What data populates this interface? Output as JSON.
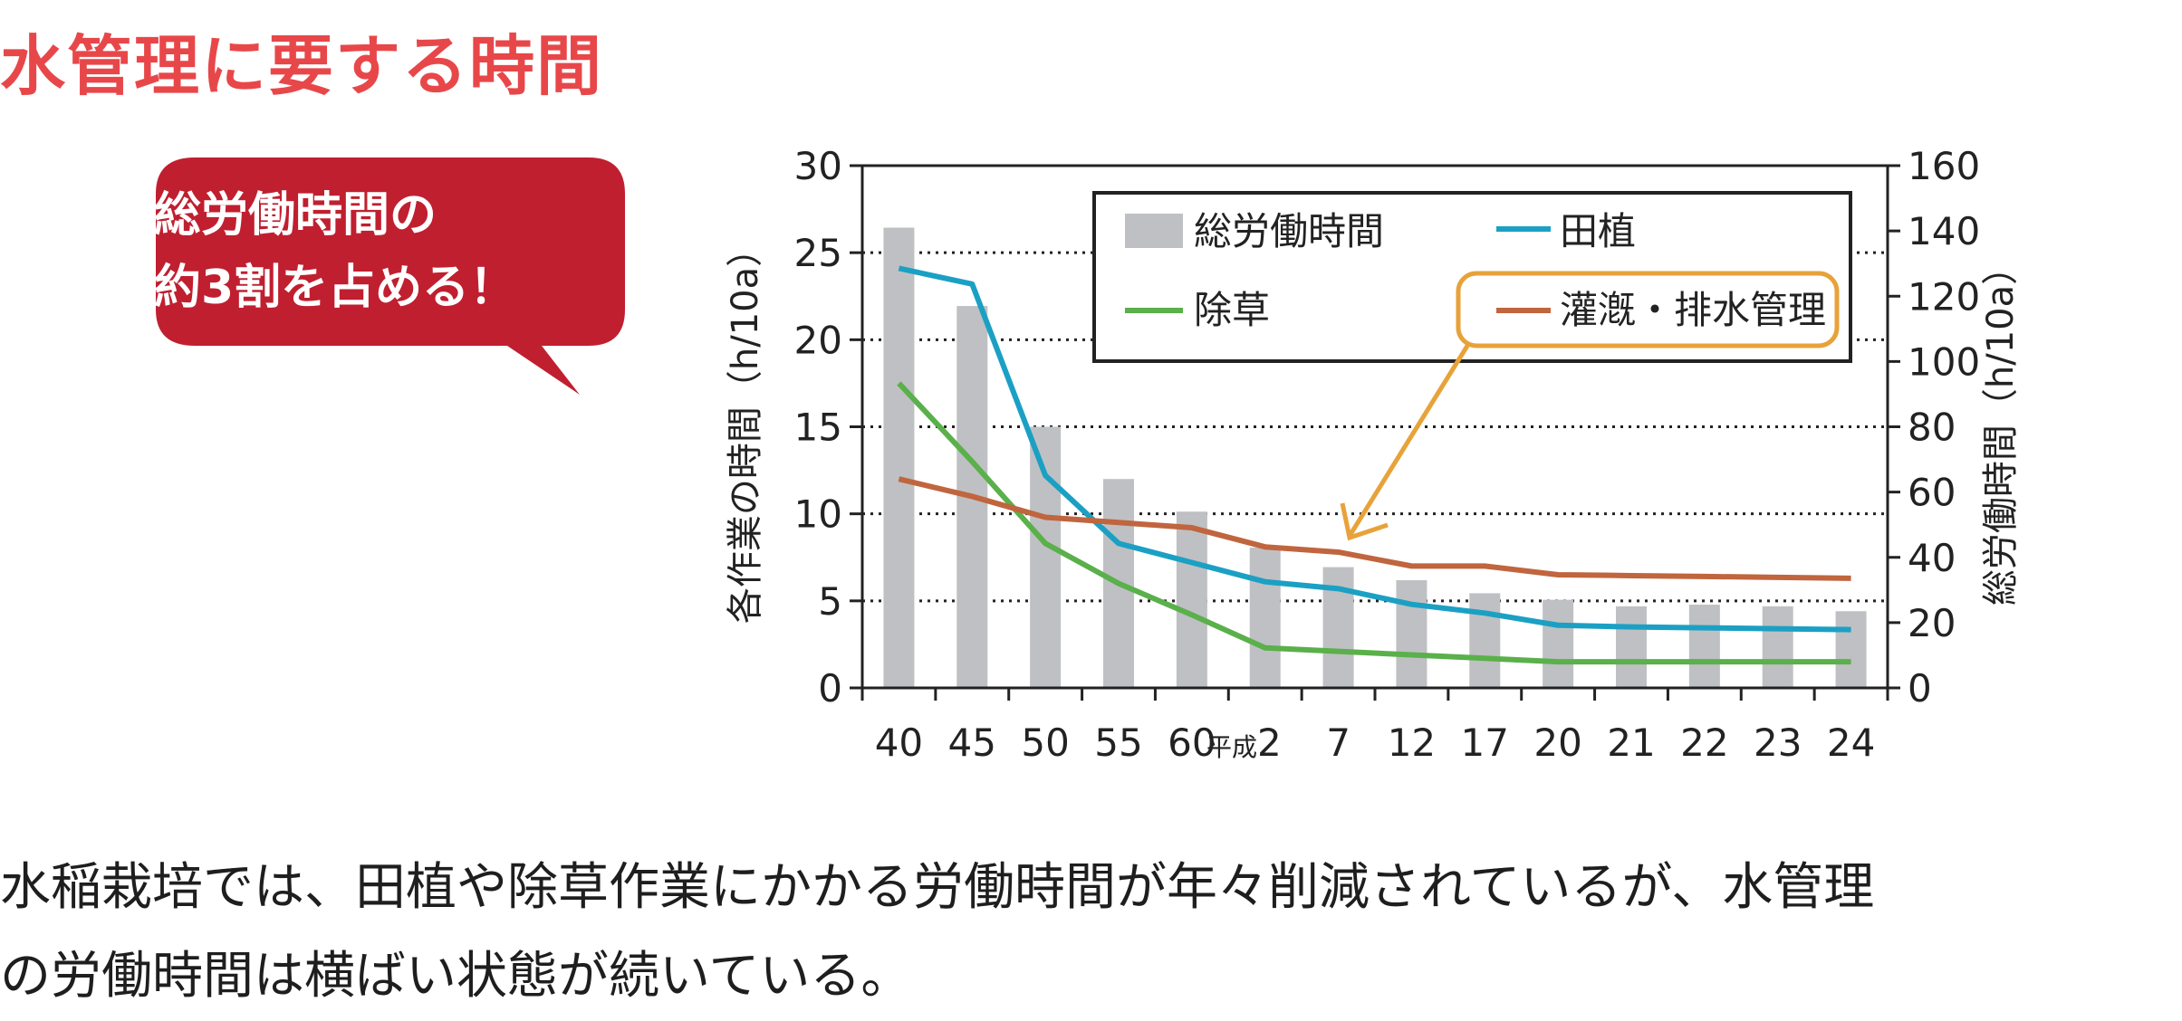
{
  "page_title": "水管理に要する時間",
  "callout": {
    "line1": "総労働時間の",
    "line2": "約3割を占める！"
  },
  "body_text": {
    "line1": "水稲栽培では、田植や除草作業にかかる労働時間が年々削減されているが、水管理",
    "line2": "の労働時間は横ばい状態が続いている。"
  },
  "colors": {
    "title": "#e8474a",
    "callout_bg": "#c01f30",
    "bar": "#bfc0c3",
    "taue": "#1ba0c4",
    "josou": "#5ab04a",
    "kangai": "#c0653e",
    "highlight": "#e8a23a"
  },
  "chart_data": {
    "type": "bar+line",
    "categories": [
      "40",
      "45",
      "50",
      "55",
      "60",
      "2",
      "7",
      "12",
      "17",
      "20",
      "21",
      "22",
      "23",
      "24"
    ],
    "category_prefix": {
      "index": 5,
      "text": "平成"
    },
    "y_left": {
      "label": "各作業の時間（h/10a）",
      "ylim": [
        0,
        30
      ],
      "ticks": [
        0,
        5,
        10,
        15,
        20,
        25,
        30
      ]
    },
    "y_right": {
      "label": "総労働時間（h/10a）",
      "ylim": [
        0,
        160
      ],
      "ticks": [
        0,
        20,
        40,
        60,
        80,
        100,
        120,
        140,
        160
      ]
    },
    "gridlines": [
      5,
      10,
      15,
      20,
      25
    ],
    "series": [
      {
        "name": "総労働時間",
        "kind": "bar",
        "axis": "right",
        "values": [
          141,
          117,
          80,
          64,
          54,
          43,
          37,
          33,
          29,
          27,
          25,
          25.5,
          25,
          23.5
        ]
      },
      {
        "name": "田植",
        "kind": "line",
        "axis": "left",
        "values": [
          24.1,
          23.2,
          12.2,
          8.3,
          7.2,
          6.1,
          5.7,
          4.8,
          4.3,
          3.6,
          3.5,
          3.45,
          3.4,
          3.35
        ]
      },
      {
        "name": "除草",
        "kind": "line",
        "axis": "left",
        "values": [
          17.5,
          13.0,
          8.3,
          6.0,
          4.2,
          2.3,
          2.1,
          1.9,
          1.7,
          1.5,
          1.5,
          1.5,
          1.5,
          1.5
        ]
      },
      {
        "name": "灌漑・排水管理",
        "kind": "line",
        "axis": "left",
        "values": [
          12.0,
          11.0,
          9.8,
          9.5,
          9.2,
          8.1,
          7.8,
          7.0,
          7.0,
          6.5,
          6.45,
          6.4,
          6.35,
          6.3
        ]
      }
    ],
    "legend": {
      "placement": "top",
      "entries": [
        "総労働時間",
        "田植",
        "除草",
        "灌漑・排水管理"
      ],
      "highlighted": "灌漑・排水管理"
    }
  }
}
